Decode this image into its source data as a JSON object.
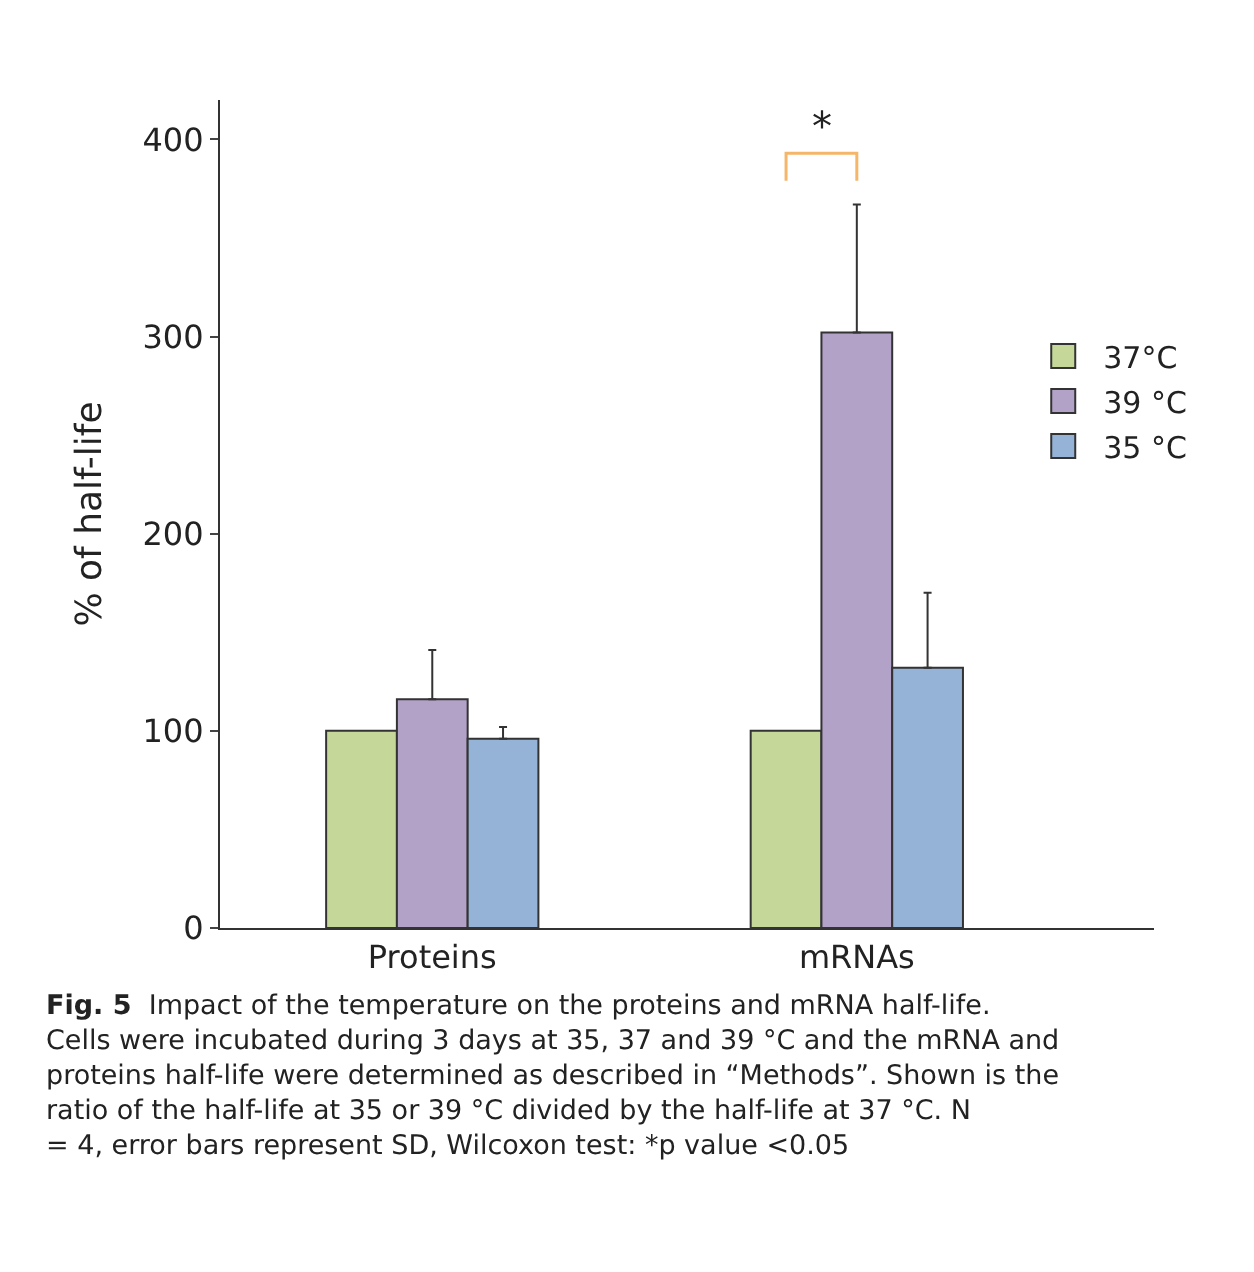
{
  "chart_data": {
    "type": "bar",
    "ylabel": "% of half-life",
    "categories": [
      "Proteins",
      "mRNAs"
    ],
    "series": [
      {
        "name": "37°C",
        "color": "#c5d89a",
        "values": [
          100,
          100
        ]
      },
      {
        "name": "39 °C",
        "color": "#b3a2c8",
        "values": [
          116,
          302
        ],
        "errors": [
          25,
          65
        ]
      },
      {
        "name": "35 °C",
        "color": "#95b3d7",
        "values": [
          96,
          132
        ],
        "errors": [
          6,
          38
        ]
      }
    ],
    "ylim": [
      0,
      420
    ],
    "yticks": [
      0,
      100,
      200,
      300,
      400
    ],
    "legend": "right",
    "annotations": [
      "*",
      "Fig. 5",
      "Impact of the temperature on the proteins and mRNA half-life. Cells were incubated during 3 days at 35, 37 and 39 °C and the mRNA and proteins half-life were determined as described in “Methods”. Shown is the ratio of the half-life at 35 or 39 °C divided by the half-life at 37 °C. N = 4, error bars represent SD, Wilcoxon test: *p value <0.05"
    ]
  }
}
